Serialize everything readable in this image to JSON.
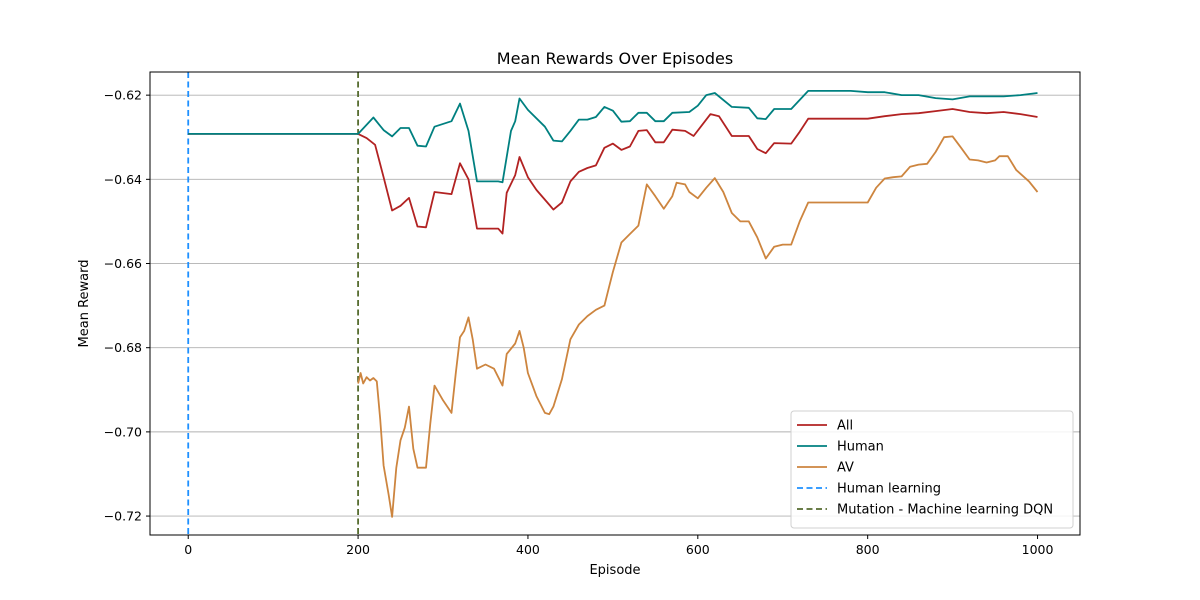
{
  "chart_data": {
    "type": "line",
    "title": "Mean Rewards Over Episodes",
    "xlabel": "Episode",
    "ylabel": "Mean Reward",
    "xlim": [
      -45,
      1050
    ],
    "ylim": [
      -0.7245,
      -0.6145
    ],
    "xticks": [
      0,
      200,
      400,
      600,
      800,
      1000
    ],
    "xtick_labels": [
      "0",
      "200",
      "400",
      "600",
      "800",
      "1000"
    ],
    "yticks": [
      -0.62,
      -0.64,
      -0.66,
      -0.68,
      -0.7,
      -0.72
    ],
    "ytick_labels": [
      "−0.62",
      "−0.64",
      "−0.66",
      "−0.68",
      "−0.70",
      "−0.72"
    ],
    "grid": "horizontal",
    "legend_position": "lower-right",
    "series": [
      {
        "name": "All",
        "color": "#b22222",
        "style": "solid",
        "points": [
          [
            0,
            -0.6292
          ],
          [
            200,
            -0.6292
          ],
          [
            210,
            -0.6302
          ],
          [
            220,
            -0.6318
          ],
          [
            230,
            -0.6395
          ],
          [
            240,
            -0.6474
          ],
          [
            250,
            -0.6463
          ],
          [
            260,
            -0.6444
          ],
          [
            270,
            -0.6512
          ],
          [
            280,
            -0.6514
          ],
          [
            290,
            -0.643
          ],
          [
            310,
            -0.6435
          ],
          [
            320,
            -0.6362
          ],
          [
            330,
            -0.64
          ],
          [
            340,
            -0.6517
          ],
          [
            365,
            -0.6517
          ],
          [
            370,
            -0.6529
          ],
          [
            375,
            -0.6432
          ],
          [
            385,
            -0.639
          ],
          [
            390,
            -0.6347
          ],
          [
            400,
            -0.6395
          ],
          [
            410,
            -0.6425
          ],
          [
            425,
            -0.646
          ],
          [
            430,
            -0.6472
          ],
          [
            440,
            -0.6455
          ],
          [
            450,
            -0.6405
          ],
          [
            460,
            -0.6382
          ],
          [
            470,
            -0.6373
          ],
          [
            480,
            -0.6367
          ],
          [
            490,
            -0.6325
          ],
          [
            500,
            -0.6315
          ],
          [
            510,
            -0.633
          ],
          [
            520,
            -0.6322
          ],
          [
            530,
            -0.6285
          ],
          [
            540,
            -0.6283
          ],
          [
            550,
            -0.6312
          ],
          [
            560,
            -0.6312
          ],
          [
            570,
            -0.6282
          ],
          [
            585,
            -0.6285
          ],
          [
            595,
            -0.6297
          ],
          [
            615,
            -0.6245
          ],
          [
            625,
            -0.625
          ],
          [
            640,
            -0.6297
          ],
          [
            660,
            -0.6297
          ],
          [
            670,
            -0.6328
          ],
          [
            680,
            -0.6338
          ],
          [
            690,
            -0.6314
          ],
          [
            710,
            -0.6315
          ],
          [
            720,
            -0.6287
          ],
          [
            730,
            -0.6256
          ],
          [
            800,
            -0.6256
          ],
          [
            820,
            -0.625
          ],
          [
            840,
            -0.6245
          ],
          [
            860,
            -0.6243
          ],
          [
            880,
            -0.6238
          ],
          [
            900,
            -0.6233
          ],
          [
            920,
            -0.624
          ],
          [
            940,
            -0.6243
          ],
          [
            960,
            -0.624
          ],
          [
            980,
            -0.6245
          ],
          [
            1000,
            -0.6252
          ]
        ]
      },
      {
        "name": "Human",
        "color": "#008080",
        "style": "solid",
        "points": [
          [
            0,
            -0.6292
          ],
          [
            200,
            -0.6292
          ],
          [
            218,
            -0.6253
          ],
          [
            230,
            -0.6283
          ],
          [
            240,
            -0.6298
          ],
          [
            250,
            -0.6278
          ],
          [
            260,
            -0.6278
          ],
          [
            270,
            -0.632
          ],
          [
            280,
            -0.6322
          ],
          [
            290,
            -0.6275
          ],
          [
            310,
            -0.6262
          ],
          [
            320,
            -0.622
          ],
          [
            330,
            -0.6285
          ],
          [
            340,
            -0.6405
          ],
          [
            365,
            -0.6405
          ],
          [
            370,
            -0.6407
          ],
          [
            380,
            -0.6285
          ],
          [
            385,
            -0.6262
          ],
          [
            390,
            -0.6208
          ],
          [
            400,
            -0.6235
          ],
          [
            420,
            -0.6275
          ],
          [
            430,
            -0.6308
          ],
          [
            440,
            -0.631
          ],
          [
            450,
            -0.6285
          ],
          [
            460,
            -0.6258
          ],
          [
            470,
            -0.6258
          ],
          [
            480,
            -0.6252
          ],
          [
            490,
            -0.6228
          ],
          [
            500,
            -0.6237
          ],
          [
            510,
            -0.6263
          ],
          [
            520,
            -0.6262
          ],
          [
            530,
            -0.6242
          ],
          [
            540,
            -0.6242
          ],
          [
            550,
            -0.6262
          ],
          [
            560,
            -0.6262
          ],
          [
            570,
            -0.6242
          ],
          [
            590,
            -0.624
          ],
          [
            600,
            -0.6225
          ],
          [
            610,
            -0.62
          ],
          [
            620,
            -0.6195
          ],
          [
            640,
            -0.6228
          ],
          [
            660,
            -0.623
          ],
          [
            670,
            -0.6255
          ],
          [
            680,
            -0.6257
          ],
          [
            690,
            -0.6233
          ],
          [
            710,
            -0.6233
          ],
          [
            730,
            -0.619
          ],
          [
            780,
            -0.619
          ],
          [
            800,
            -0.6193
          ],
          [
            820,
            -0.6193
          ],
          [
            840,
            -0.62
          ],
          [
            860,
            -0.62
          ],
          [
            880,
            -0.6207
          ],
          [
            900,
            -0.621
          ],
          [
            920,
            -0.6203
          ],
          [
            940,
            -0.6203
          ],
          [
            960,
            -0.6203
          ],
          [
            980,
            -0.62
          ],
          [
            1000,
            -0.6195
          ]
        ]
      },
      {
        "name": "AV",
        "color": "#cd853f",
        "style": "solid",
        "points": [
          [
            200,
            -0.6885
          ],
          [
            203,
            -0.686
          ],
          [
            206,
            -0.6885
          ],
          [
            210,
            -0.687
          ],
          [
            214,
            -0.6878
          ],
          [
            218,
            -0.6872
          ],
          [
            222,
            -0.688
          ],
          [
            226,
            -0.697
          ],
          [
            230,
            -0.708
          ],
          [
            236,
            -0.715
          ],
          [
            240,
            -0.7202
          ],
          [
            245,
            -0.7085
          ],
          [
            250,
            -0.702
          ],
          [
            255,
            -0.699
          ],
          [
            260,
            -0.694
          ],
          [
            265,
            -0.704
          ],
          [
            270,
            -0.7085
          ],
          [
            280,
            -0.7085
          ],
          [
            285,
            -0.698
          ],
          [
            290,
            -0.689
          ],
          [
            300,
            -0.6925
          ],
          [
            310,
            -0.6955
          ],
          [
            315,
            -0.686
          ],
          [
            320,
            -0.6775
          ],
          [
            325,
            -0.676
          ],
          [
            330,
            -0.6728
          ],
          [
            335,
            -0.678
          ],
          [
            340,
            -0.685
          ],
          [
            350,
            -0.684
          ],
          [
            360,
            -0.685
          ],
          [
            370,
            -0.689
          ],
          [
            375,
            -0.6815
          ],
          [
            385,
            -0.679
          ],
          [
            390,
            -0.676
          ],
          [
            395,
            -0.68
          ],
          [
            400,
            -0.686
          ],
          [
            410,
            -0.6915
          ],
          [
            420,
            -0.6955
          ],
          [
            425,
            -0.6958
          ],
          [
            430,
            -0.694
          ],
          [
            440,
            -0.6875
          ],
          [
            450,
            -0.678
          ],
          [
            460,
            -0.6745
          ],
          [
            470,
            -0.6725
          ],
          [
            480,
            -0.671
          ],
          [
            490,
            -0.67
          ],
          [
            495,
            -0.666
          ],
          [
            500,
            -0.662
          ],
          [
            510,
            -0.655
          ],
          [
            520,
            -0.653
          ],
          [
            530,
            -0.651
          ],
          [
            540,
            -0.6412
          ],
          [
            550,
            -0.644
          ],
          [
            560,
            -0.647
          ],
          [
            570,
            -0.644
          ],
          [
            575,
            -0.6408
          ],
          [
            585,
            -0.6412
          ],
          [
            590,
            -0.643
          ],
          [
            600,
            -0.6445
          ],
          [
            610,
            -0.642
          ],
          [
            620,
            -0.6397
          ],
          [
            630,
            -0.643
          ],
          [
            640,
            -0.648
          ],
          [
            650,
            -0.65
          ],
          [
            660,
            -0.65
          ],
          [
            670,
            -0.6538
          ],
          [
            680,
            -0.6588
          ],
          [
            690,
            -0.656
          ],
          [
            700,
            -0.6555
          ],
          [
            710,
            -0.6555
          ],
          [
            720,
            -0.65
          ],
          [
            730,
            -0.6455
          ],
          [
            780,
            -0.6455
          ],
          [
            790,
            -0.6455
          ],
          [
            800,
            -0.6455
          ],
          [
            810,
            -0.642
          ],
          [
            820,
            -0.6398
          ],
          [
            830,
            -0.6395
          ],
          [
            840,
            -0.6393
          ],
          [
            850,
            -0.637
          ],
          [
            860,
            -0.6365
          ],
          [
            870,
            -0.6363
          ],
          [
            880,
            -0.6335
          ],
          [
            890,
            -0.63
          ],
          [
            900,
            -0.6298
          ],
          [
            910,
            -0.6325
          ],
          [
            920,
            -0.6353
          ],
          [
            930,
            -0.6355
          ],
          [
            940,
            -0.636
          ],
          [
            950,
            -0.6355
          ],
          [
            955,
            -0.6345
          ],
          [
            965,
            -0.6345
          ],
          [
            975,
            -0.6378
          ],
          [
            990,
            -0.6405
          ],
          [
            1000,
            -0.643
          ]
        ]
      },
      {
        "name": "Human learning",
        "color": "#1e90ff",
        "style": "dashed",
        "vline_x": 0
      },
      {
        "name": "Mutation - Machine learning DQN",
        "color": "#556b2f",
        "style": "dashed",
        "vline_x": 200
      }
    ]
  }
}
